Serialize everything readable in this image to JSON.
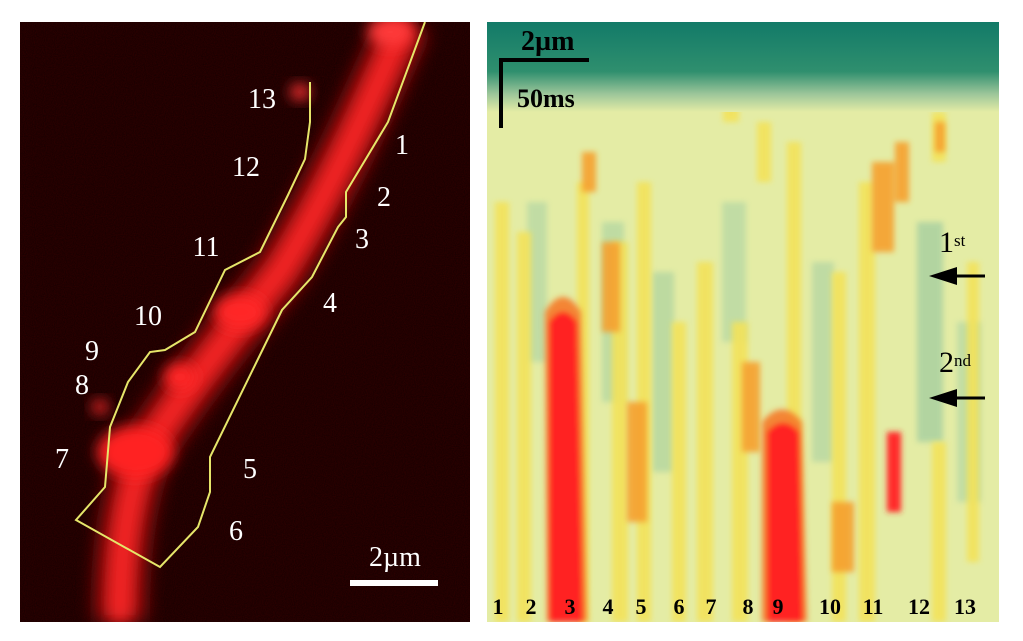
{
  "panel_a": {
    "roi_labels": [
      "1",
      "2",
      "3",
      "4",
      "5",
      "6",
      "7",
      "8",
      "9",
      "10",
      "11",
      "12",
      "13"
    ],
    "scale_label": "2µm"
  },
  "panel_b": {
    "scale_distance": "2µm",
    "scale_time": "50ms",
    "roi_labels": [
      "1",
      "2",
      "3",
      "4",
      "5",
      "6",
      "7",
      "8",
      "9",
      "10",
      "11",
      "12",
      "13"
    ],
    "stim_1_base": "1",
    "stim_1_sup": "st",
    "stim_2_base": "2",
    "stim_2_sup": "nd"
  },
  "colors": {
    "dendrite_red": "#ff1a1a",
    "roi_outline": "#e6e66a",
    "heatmap_background": "#e4eca5",
    "heatmap_top": "#127a68",
    "heatmap_hot": "#ff1e1e"
  }
}
